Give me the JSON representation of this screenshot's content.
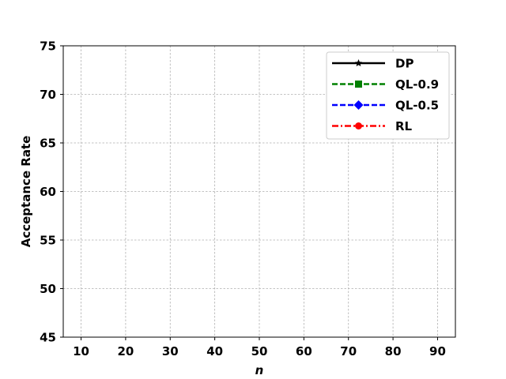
{
  "chart_data": {
    "type": "line",
    "title": "",
    "xlabel": "n",
    "ylabel": "Acceptance Rate",
    "xlim": [
      6,
      94
    ],
    "ylim": [
      45,
      75
    ],
    "xticks": [
      10,
      20,
      30,
      40,
      50,
      60,
      70,
      80,
      90
    ],
    "yticks": [
      45,
      50,
      55,
      60,
      65,
      70,
      75
    ],
    "grid": true,
    "legend_position": "top-right",
    "series": [
      {
        "name": "DP",
        "color": "#000000",
        "linestyle": "solid",
        "marker": "star",
        "x": [],
        "y": []
      },
      {
        "name": "QL-0.9",
        "color": "#008000",
        "linestyle": "dashed",
        "marker": "square",
        "x": [],
        "y": []
      },
      {
        "name": "QL-0.5",
        "color": "#0000ff",
        "linestyle": "dashed",
        "marker": "diamond",
        "x": [],
        "y": []
      },
      {
        "name": "RL",
        "color": "#ff0000",
        "linestyle": "dashdot",
        "marker": "circle",
        "x": [],
        "y": []
      }
    ]
  }
}
